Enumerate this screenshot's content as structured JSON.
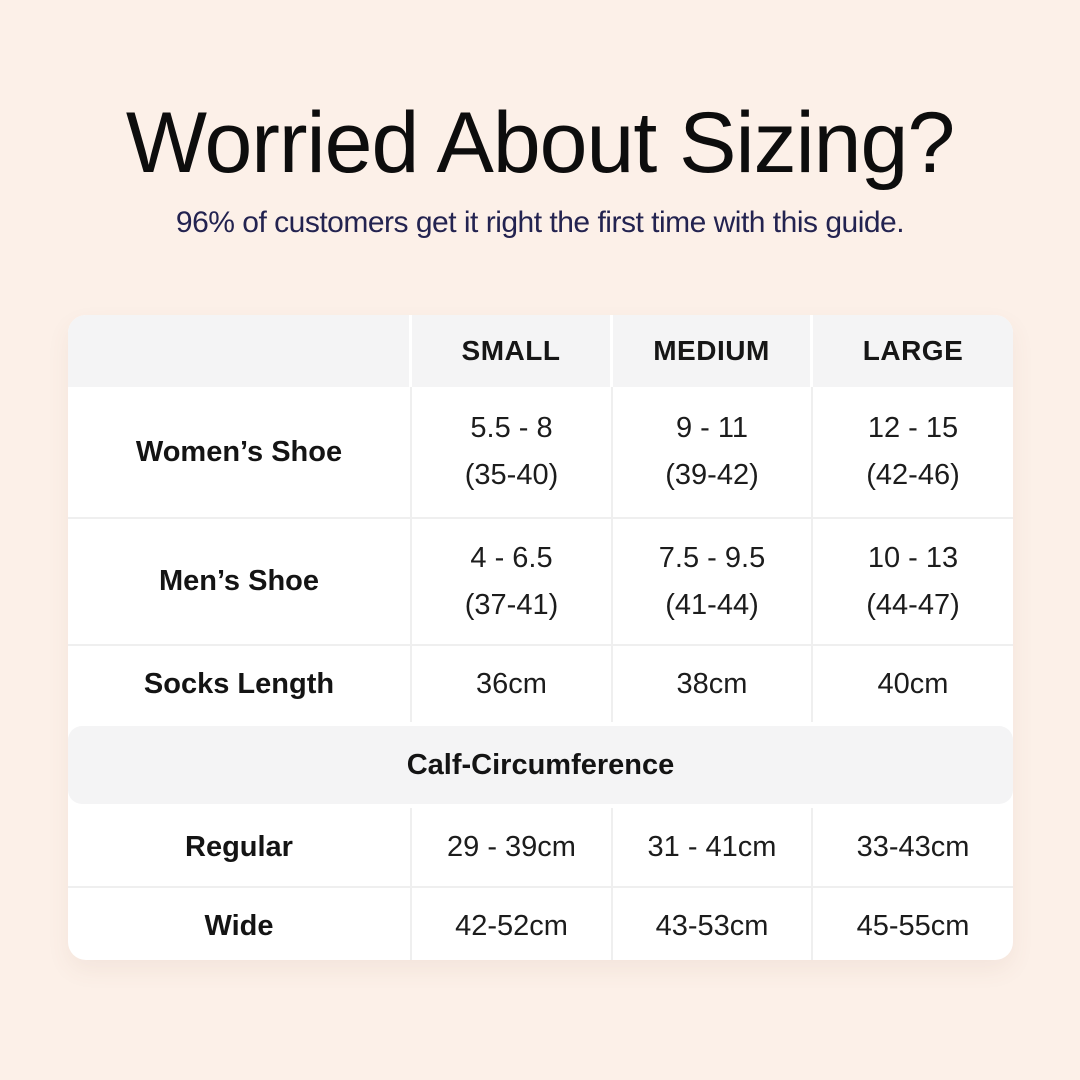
{
  "page": {
    "title": "Worried About Sizing?",
    "subtitle": "96% of customers get it right the first time with this guide."
  },
  "colors": {
    "page_background": "#fcf0e8",
    "table_background": "#ffffff",
    "header_band_background": "#f4f4f5",
    "section_band_background": "#f4f4f5",
    "divider": "#efefef",
    "title_text": "#0d0d0d",
    "subtitle_text": "#232350",
    "table_text": "#191919"
  },
  "chart_data": {
    "type": "table",
    "title": "Worried About Sizing?",
    "subtitle": "96% of customers get it right the first time with this guide.",
    "columns": [
      "SMALL",
      "MEDIUM",
      "LARGE"
    ],
    "rows": [
      {
        "label": "Women’s Shoe",
        "small": [
          "5.5 - 8",
          "(35-40)"
        ],
        "medium": [
          "9 - 11",
          "(39-42)"
        ],
        "large": [
          "12 - 15",
          "(42-46)"
        ]
      },
      {
        "label": "Men’s Shoe",
        "small": [
          "4 - 6.5",
          "(37-41)"
        ],
        "medium": [
          "7.5 - 9.5",
          "(41-44)"
        ],
        "large": [
          "10 - 13",
          "(44-47)"
        ]
      },
      {
        "label": "Socks Length",
        "small": [
          "36cm"
        ],
        "medium": [
          "38cm"
        ],
        "large": [
          "40cm"
        ]
      }
    ],
    "section": {
      "header": "Calf-Circumference",
      "rows": [
        {
          "label": "Regular",
          "small": [
            "29 - 39cm"
          ],
          "medium": [
            "31 - 41cm"
          ],
          "large": [
            "33-43cm"
          ]
        },
        {
          "label": "Wide",
          "small": [
            "42-52cm"
          ],
          "medium": [
            "43-53cm"
          ],
          "large": [
            "45-55cm"
          ]
        }
      ]
    }
  }
}
